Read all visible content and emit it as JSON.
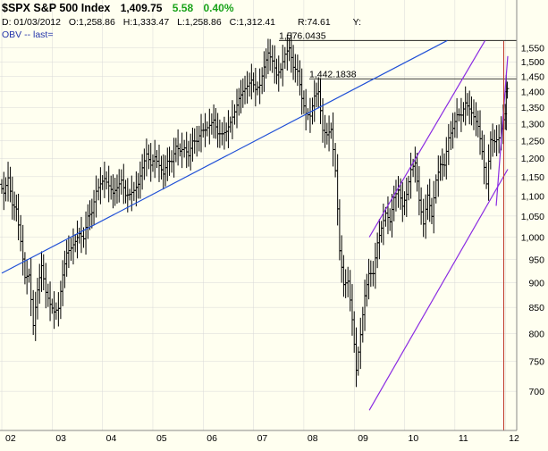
{
  "header": {
    "symbol": "$SPX S&P 500 Index",
    "last": "1,409.75",
    "change": "5.58",
    "change_pct": "0.40%"
  },
  "info": {
    "date": "D: 01/03/2012",
    "open": "O:1,258.86",
    "high": "H:1,333.47",
    "low": "L:1,258.86",
    "close": "C:1,312.41",
    "range": "R:74.61",
    "y_label": "Y:"
  },
  "indicator": {
    "label": "OBV -- last="
  },
  "colors": {
    "background": "#fffff0",
    "bars": "#000000",
    "trendline_blue": "#1f4fd6",
    "channel_purple": "#8a2be2",
    "current_marker": "#c0392b",
    "grid": "#d8d8d8"
  },
  "chart_data": {
    "type": "ohlc",
    "symbol": "$SPX",
    "y_scale": "log",
    "ylim": [
      650,
      1600
    ],
    "y_ticks": [
      "1,550",
      "1,500",
      "1,450",
      "1,400",
      "1,350",
      "1,300",
      "1,250",
      "1,200",
      "1,150",
      "1,100",
      "1,050",
      "1,000",
      "950",
      "900",
      "850",
      "800",
      "750",
      "700"
    ],
    "x_ticks": [
      "02",
      "03",
      "04",
      "05",
      "06",
      "07",
      "08",
      "09",
      "10",
      "11",
      "12"
    ],
    "x_range": [
      2002.0,
      2012.05
    ],
    "grid": true,
    "annotations": [
      {
        "label": "1,576.0435",
        "y": 1576.04
      },
      {
        "label": "1,442.1838",
        "y": 1442.18
      }
    ],
    "monthly_close": [
      [
        2002.0,
        1130
      ],
      [
        2002.08,
        1107
      ],
      [
        2002.17,
        1147
      ],
      [
        2002.25,
        1077
      ],
      [
        2002.33,
        1067
      ],
      [
        2002.42,
        990
      ],
      [
        2002.5,
        911
      ],
      [
        2002.58,
        916
      ],
      [
        2002.67,
        815
      ],
      [
        2002.75,
        885
      ],
      [
        2002.83,
        936
      ],
      [
        2002.92,
        880
      ],
      [
        2003.0,
        856
      ],
      [
        2003.08,
        841
      ],
      [
        2003.17,
        848
      ],
      [
        2003.25,
        916
      ],
      [
        2003.33,
        964
      ],
      [
        2003.42,
        975
      ],
      [
        2003.5,
        990
      ],
      [
        2003.58,
        1008
      ],
      [
        2003.67,
        996
      ],
      [
        2003.75,
        1050
      ],
      [
        2003.83,
        1058
      ],
      [
        2003.92,
        1112
      ],
      [
        2004.0,
        1131
      ],
      [
        2004.08,
        1145
      ],
      [
        2004.17,
        1126
      ],
      [
        2004.25,
        1107
      ],
      [
        2004.33,
        1121
      ],
      [
        2004.42,
        1141
      ],
      [
        2004.5,
        1101
      ],
      [
        2004.58,
        1104
      ],
      [
        2004.67,
        1114
      ],
      [
        2004.75,
        1130
      ],
      [
        2004.83,
        1174
      ],
      [
        2004.92,
        1212
      ],
      [
        2005.0,
        1181
      ],
      [
        2005.08,
        1204
      ],
      [
        2005.17,
        1180
      ],
      [
        2005.25,
        1157
      ],
      [
        2005.33,
        1192
      ],
      [
        2005.42,
        1191
      ],
      [
        2005.5,
        1234
      ],
      [
        2005.58,
        1220
      ],
      [
        2005.67,
        1229
      ],
      [
        2005.75,
        1207
      ],
      [
        2005.83,
        1249
      ],
      [
        2005.92,
        1248
      ],
      [
        2006.0,
        1280
      ],
      [
        2006.08,
        1281
      ],
      [
        2006.17,
        1295
      ],
      [
        2006.25,
        1311
      ],
      [
        2006.33,
        1270
      ],
      [
        2006.42,
        1270
      ],
      [
        2006.5,
        1277
      ],
      [
        2006.58,
        1304
      ],
      [
        2006.67,
        1336
      ],
      [
        2006.75,
        1378
      ],
      [
        2006.83,
        1401
      ],
      [
        2006.92,
        1418
      ],
      [
        2007.0,
        1438
      ],
      [
        2007.08,
        1407
      ],
      [
        2007.17,
        1421
      ],
      [
        2007.25,
        1482
      ],
      [
        2007.33,
        1531
      ],
      [
        2007.42,
        1503
      ],
      [
        2007.5,
        1455
      ],
      [
        2007.58,
        1474
      ],
      [
        2007.67,
        1527
      ],
      [
        2007.75,
        1549
      ],
      [
        2007.83,
        1481
      ],
      [
        2007.92,
        1468
      ],
      [
        2008.0,
        1378
      ],
      [
        2008.08,
        1331
      ],
      [
        2008.17,
        1323
      ],
      [
        2008.25,
        1386
      ],
      [
        2008.33,
        1400
      ],
      [
        2008.42,
        1280
      ],
      [
        2008.5,
        1267
      ],
      [
        2008.58,
        1283
      ],
      [
        2008.67,
        1166
      ],
      [
        2008.75,
        969
      ],
      [
        2008.83,
        896
      ],
      [
        2008.92,
        903
      ],
      [
        2009.0,
        826
      ],
      [
        2009.08,
        735
      ],
      [
        2009.17,
        798
      ],
      [
        2009.25,
        873
      ],
      [
        2009.33,
        919
      ],
      [
        2009.42,
        919
      ],
      [
        2009.5,
        987
      ],
      [
        2009.58,
        1021
      ],
      [
        2009.67,
        1057
      ],
      [
        2009.75,
        1036
      ],
      [
        2009.83,
        1096
      ],
      [
        2009.92,
        1115
      ],
      [
        2010.0,
        1074
      ],
      [
        2010.08,
        1104
      ],
      [
        2010.17,
        1169
      ],
      [
        2010.25,
        1187
      ],
      [
        2010.33,
        1089
      ],
      [
        2010.42,
        1031
      ],
      [
        2010.5,
        1102
      ],
      [
        2010.58,
        1049
      ],
      [
        2010.67,
        1141
      ],
      [
        2010.75,
        1183
      ],
      [
        2010.83,
        1181
      ],
      [
        2010.92,
        1258
      ],
      [
        2011.0,
        1286
      ],
      [
        2011.08,
        1327
      ],
      [
        2011.17,
        1326
      ],
      [
        2011.25,
        1364
      ],
      [
        2011.33,
        1345
      ],
      [
        2011.42,
        1321
      ],
      [
        2011.5,
        1292
      ],
      [
        2011.58,
        1219
      ],
      [
        2011.67,
        1131
      ],
      [
        2011.75,
        1253
      ],
      [
        2011.83,
        1247
      ],
      [
        2011.92,
        1258
      ],
      [
        2012.0,
        1312
      ],
      [
        2012.02,
        1330
      ],
      [
        2012.04,
        1400
      ],
      [
        2012.05,
        1410
      ]
    ],
    "trendlines": [
      {
        "name": "blue-uptrend",
        "from": [
          2002.0,
          920
        ],
        "to": [
          2010.85,
          1576
        ]
      },
      {
        "name": "purple-channel-upper",
        "from": [
          2009.3,
          1000
        ],
        "to": [
          2011.6,
          1576
        ]
      },
      {
        "name": "purple-channel-lower",
        "from": [
          2009.3,
          670
        ],
        "to": [
          2012.05,
          1170
        ]
      },
      {
        "name": "purple-steep",
        "from": [
          2011.82,
          1075
        ],
        "to": [
          2012.05,
          1520
        ]
      }
    ],
    "current_marker_x": 2011.97
  }
}
